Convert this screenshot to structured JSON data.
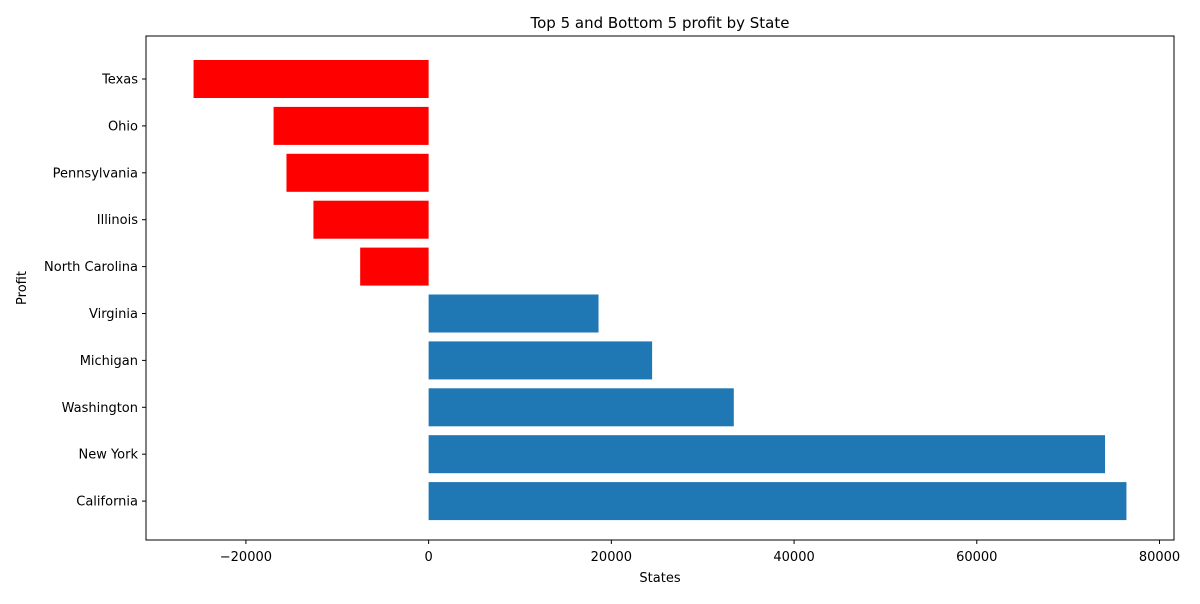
{
  "chart_data": {
    "type": "bar",
    "orientation": "horizontal",
    "title": "Top 5 and Bottom 5 profit by State",
    "xlabel": "States",
    "ylabel": "Profit",
    "categories": [
      "California",
      "New York",
      "Washington",
      "Michigan",
      "Virginia",
      "North Carolina",
      "Illinois",
      "Pennsylvania",
      "Ohio",
      "Texas"
    ],
    "values": [
      76381,
      74039,
      33403,
      24463,
      18598,
      -7491,
      -12608,
      -15560,
      -16971,
      -25729
    ],
    "bar_colors": [
      "#1f77b4",
      "#1f77b4",
      "#1f77b4",
      "#1f77b4",
      "#1f77b4",
      "#ff0000",
      "#ff0000",
      "#ff0000",
      "#ff0000",
      "#ff0000"
    ],
    "xticks": [
      -20000,
      0,
      20000,
      40000,
      60000,
      80000
    ],
    "xlim": [
      -30935,
      81587
    ],
    "grid": false,
    "legend": "none"
  }
}
